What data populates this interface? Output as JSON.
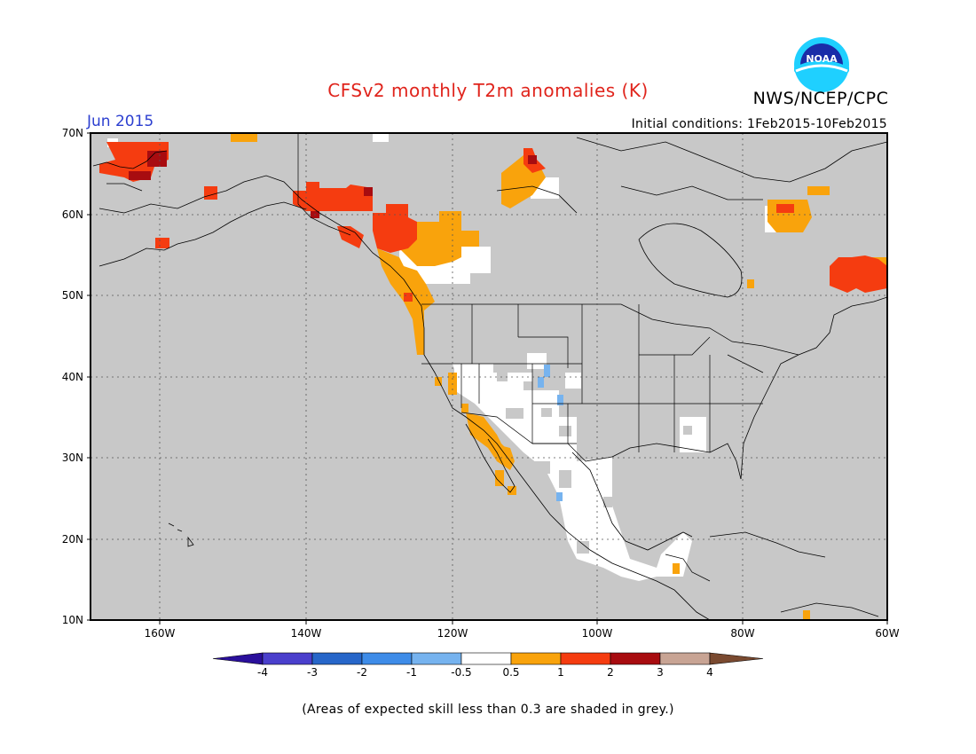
{
  "title": "CFSv2 monthly T2m anomalies (K)",
  "organization": "NWS/NCEP/CPC",
  "logo_text": "NOAA",
  "month": "Jun 2015",
  "initial_conditions": "Initial conditions: 1Feb2015-10Feb2015",
  "footnote": "(Areas of expected skill less than 0.3 are shaded in grey.)",
  "lat_ticks": [
    "70N",
    "60N",
    "50N",
    "40N",
    "30N",
    "20N",
    "10N"
  ],
  "lon_ticks": [
    "160W",
    "140W",
    "120W",
    "100W",
    "80W",
    "60W"
  ],
  "legend": {
    "tick_labels": [
      "-4",
      "-3",
      "-2",
      "-1",
      "-0.5",
      "0.5",
      "1",
      "2",
      "3",
      "4"
    ],
    "colors": [
      "#2a0f9b",
      "#4a3fcc",
      "#2766c9",
      "#3e8ce8",
      "#76b3ef",
      "#ffffff",
      "#f9a30c",
      "#f53c10",
      "#a80c10",
      "#c8a494",
      "#7a4a30"
    ]
  },
  "colors": {
    "title": "#e0241c",
    "month": "#2c3fd0",
    "skill_grey": "#c8c8c8",
    "near_zero": "#ffffff"
  }
}
